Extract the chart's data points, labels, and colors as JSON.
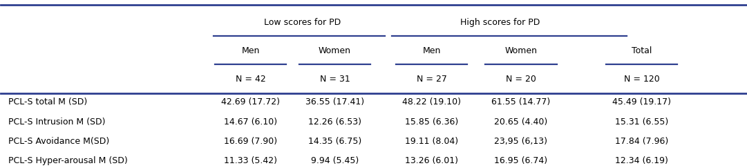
{
  "col_headers_level1_left": "Low scores for PD",
  "col_headers_level1_right": "High scores for PD",
  "col_headers_level2": [
    "Men",
    "Women",
    "Men",
    "Women",
    "Total"
  ],
  "col_headers_level3": [
    "N = 42",
    "N = 31",
    "N = 27",
    "N = 20",
    "N = 120"
  ],
  "rows": [
    [
      "PCL-S total M (SD)",
      "42.69 (17.72)",
      "36.55 (17.41)",
      "48.22 (19.10)",
      "61.55 (14.77)",
      "45.49 (19.17)"
    ],
    [
      "PCL-S Intrusion M (SD)",
      "14.67 (6.10)",
      "12.26 (6.53)",
      "15.85 (6.36)",
      "20.65 (4.40)",
      "15.31 (6.55)"
    ],
    [
      "PCL-S Avoidance M(SD)",
      "16.69 (7.90)",
      "14.35 (6.75)",
      "19.11 (8.04)",
      "23,95 (6,13)",
      "17.84 (7.96)"
    ],
    [
      "PCL-S Hyper-arousal M (SD)",
      "11.33 (5.42)",
      "9.94 (5.45)",
      "13.26 (6.01)",
      "16.95 (6.74)",
      "12.34 (6.19)"
    ]
  ],
  "line_color": "#2e3f8f",
  "bg_color": "#ffffff",
  "text_color": "#000000",
  "font_size": 9.0
}
